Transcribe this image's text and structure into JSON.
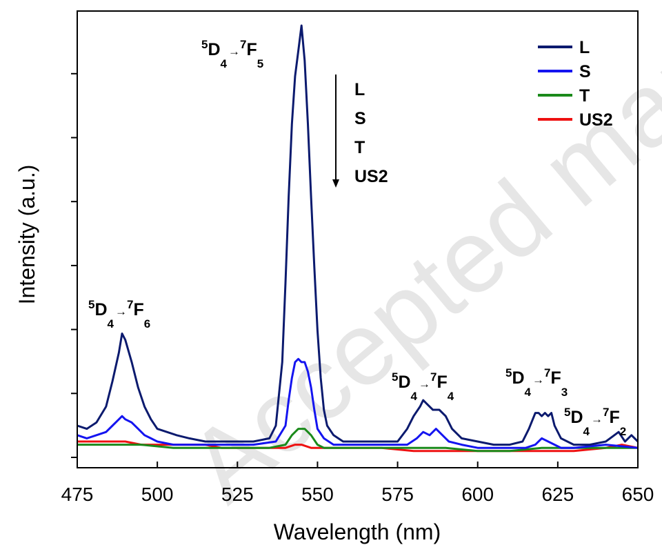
{
  "watermark": "Accepted manuscript",
  "chart_data": {
    "type": "line",
    "xlabel": "Wavelength (nm)",
    "ylabel": "Intensity (a.u.)",
    "xlim": [
      475,
      650
    ],
    "ylim": [
      0,
      1.36
    ],
    "x_ticks": [
      475,
      500,
      525,
      550,
      575,
      600,
      625,
      650
    ],
    "x_tick_labels": [
      "475",
      "500",
      "525",
      "550",
      "575",
      "600",
      "625",
      "650"
    ],
    "y_tick_labels": [],
    "legend_position": "top-right",
    "transitions": [
      {
        "upper": "D",
        "upper_sup": "5",
        "upper_sub": "4",
        "lower": "F",
        "lower_sup": "7",
        "lower_sub": "6",
        "x": 489
      },
      {
        "upper": "D",
        "upper_sup": "5",
        "upper_sub": "4",
        "lower": "F",
        "lower_sup": "7",
        "lower_sub": "5",
        "x": 544
      },
      {
        "upper": "D",
        "upper_sup": "5",
        "upper_sub": "4",
        "lower": "F",
        "lower_sup": "7",
        "lower_sub": "4",
        "x": 584
      },
      {
        "upper": "D",
        "upper_sup": "5",
        "upper_sub": "4",
        "lower": "F",
        "lower_sup": "7",
        "lower_sub": "3",
        "x": 620
      },
      {
        "upper": "D",
        "upper_sup": "5",
        "upper_sub": "4",
        "lower": "F",
        "lower_sup": "7",
        "lower_sub": "2",
        "x": 647
      }
    ],
    "order_labels": [
      "L",
      "S",
      "T",
      "US2"
    ],
    "series": [
      {
        "name": "L",
        "color": "#0b1a6e",
        "x": [
          475,
          478,
          481,
          484,
          486,
          488,
          489,
          490,
          492,
          494,
          496,
          498,
          500,
          503,
          506,
          510,
          515,
          520,
          525,
          530,
          535,
          537,
          539,
          540,
          541,
          542,
          543,
          544,
          545,
          546,
          547,
          548,
          549,
          550,
          551,
          552,
          553,
          555,
          558,
          562,
          566,
          570,
          575,
          578,
          580,
          582,
          583,
          584,
          586,
          588,
          590,
          592,
          595,
          600,
          605,
          610,
          614,
          616,
          618,
          619,
          620,
          621,
          622,
          623,
          624,
          626,
          630,
          635,
          640,
          644,
          646,
          648,
          650
        ],
        "y": [
          0.1,
          0.09,
          0.11,
          0.16,
          0.24,
          0.33,
          0.39,
          0.37,
          0.3,
          0.22,
          0.16,
          0.12,
          0.09,
          0.08,
          0.07,
          0.06,
          0.05,
          0.05,
          0.05,
          0.05,
          0.06,
          0.1,
          0.3,
          0.55,
          0.82,
          1.05,
          1.2,
          1.28,
          1.36,
          1.25,
          1.05,
          0.82,
          0.6,
          0.4,
          0.25,
          0.15,
          0.1,
          0.07,
          0.05,
          0.05,
          0.05,
          0.05,
          0.05,
          0.09,
          0.13,
          0.16,
          0.18,
          0.17,
          0.15,
          0.15,
          0.13,
          0.09,
          0.06,
          0.05,
          0.04,
          0.04,
          0.05,
          0.09,
          0.14,
          0.14,
          0.13,
          0.14,
          0.13,
          0.14,
          0.1,
          0.06,
          0.04,
          0.04,
          0.05,
          0.08,
          0.05,
          0.07,
          0.05
        ]
      },
      {
        "name": "S",
        "color": "#1414f0",
        "x": [
          475,
          478,
          481,
          484,
          486,
          488,
          489,
          490,
          492,
          494,
          496,
          498,
          500,
          505,
          510,
          520,
          530,
          537,
          540,
          541,
          542,
          543,
          544,
          545,
          546,
          547,
          548,
          549,
          550,
          552,
          555,
          560,
          570,
          578,
          581,
          583,
          585,
          587,
          589,
          591,
          595,
          600,
          610,
          615,
          618,
          620,
          622,
          624,
          626,
          630,
          640,
          650
        ],
        "y": [
          0.07,
          0.06,
          0.07,
          0.08,
          0.1,
          0.12,
          0.13,
          0.12,
          0.11,
          0.09,
          0.07,
          0.06,
          0.05,
          0.04,
          0.04,
          0.04,
          0.04,
          0.05,
          0.1,
          0.18,
          0.25,
          0.3,
          0.31,
          0.3,
          0.3,
          0.27,
          0.22,
          0.15,
          0.09,
          0.06,
          0.04,
          0.04,
          0.04,
          0.04,
          0.06,
          0.08,
          0.07,
          0.09,
          0.07,
          0.05,
          0.04,
          0.03,
          0.03,
          0.03,
          0.04,
          0.06,
          0.05,
          0.04,
          0.03,
          0.03,
          0.04,
          0.03
        ]
      },
      {
        "name": "T",
        "color": "#1a8a1a",
        "x": [
          475,
          485,
          495,
          505,
          515,
          525,
          535,
          540,
          542,
          544,
          546,
          548,
          550,
          552,
          555,
          560,
          570,
          580,
          590,
          600,
          610,
          620,
          630,
          640,
          650
        ],
        "y": [
          0.04,
          0.04,
          0.04,
          0.03,
          0.03,
          0.03,
          0.03,
          0.04,
          0.07,
          0.09,
          0.09,
          0.07,
          0.04,
          0.03,
          0.03,
          0.03,
          0.03,
          0.03,
          0.03,
          0.02,
          0.02,
          0.03,
          0.03,
          0.03,
          0.03
        ]
      },
      {
        "name": "US2",
        "color": "#ee1111",
        "x": [
          475,
          480,
          485,
          490,
          495,
          500,
          505,
          510,
          515,
          520,
          525,
          530,
          535,
          540,
          543,
          545,
          548,
          550,
          555,
          560,
          570,
          580,
          590,
          600,
          610,
          620,
          630,
          640,
          645,
          650
        ],
        "y": [
          0.05,
          0.05,
          0.05,
          0.05,
          0.04,
          0.04,
          0.04,
          0.04,
          0.04,
          0.03,
          0.03,
          0.03,
          0.03,
          0.03,
          0.04,
          0.04,
          0.03,
          0.03,
          0.03,
          0.03,
          0.03,
          0.02,
          0.02,
          0.02,
          0.02,
          0.02,
          0.02,
          0.03,
          0.04,
          0.03
        ]
      }
    ]
  }
}
